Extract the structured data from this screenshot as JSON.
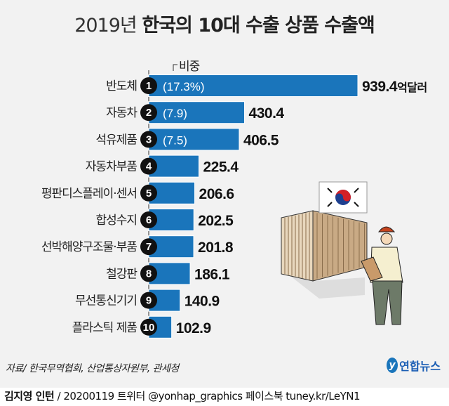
{
  "title": {
    "year": "2019년",
    "main": "한국의 10대 수출 상품 수출액"
  },
  "chart_data": {
    "type": "bar",
    "orientation": "horizontal",
    "title": "2019년 한국의 10대 수출 상품 수출액",
    "share_label": "비중",
    "unit": "억달러",
    "categories": [
      "반도체",
      "자동차",
      "석유제품",
      "자동차부품",
      "평판디스플레이·센서",
      "합성수지",
      "선박해양구조물·부품",
      "철강판",
      "무선통신기기",
      "플라스틱 제품"
    ],
    "ranks": [
      "1",
      "2",
      "3",
      "4",
      "5",
      "6",
      "7",
      "8",
      "9",
      "10"
    ],
    "values": [
      939.4,
      430.4,
      406.5,
      225.4,
      206.6,
      202.5,
      201.8,
      186.1,
      140.9,
      102.9
    ],
    "value_labels": [
      "939.4",
      "430.4",
      "406.5",
      "225.4",
      "206.6",
      "202.5",
      "201.8",
      "186.1",
      "140.9",
      "102.9"
    ],
    "share_labels": [
      "(17.3%)",
      "(7.9)",
      "(7.5)",
      "",
      "",
      "",
      "",
      "",
      "",
      ""
    ],
    "bar_color": "#1a75bb",
    "xlim": [
      0,
      939.4
    ]
  },
  "source": "자료/ 한국무역협회, 산업통상자원부, 관세청",
  "logo": "연합뉴스",
  "footer": {
    "author": "김지영 인턴",
    "rest": " / 20200119 트위터 @yonhap_graphics  페이스북 tuney.kr/LeYN1"
  }
}
